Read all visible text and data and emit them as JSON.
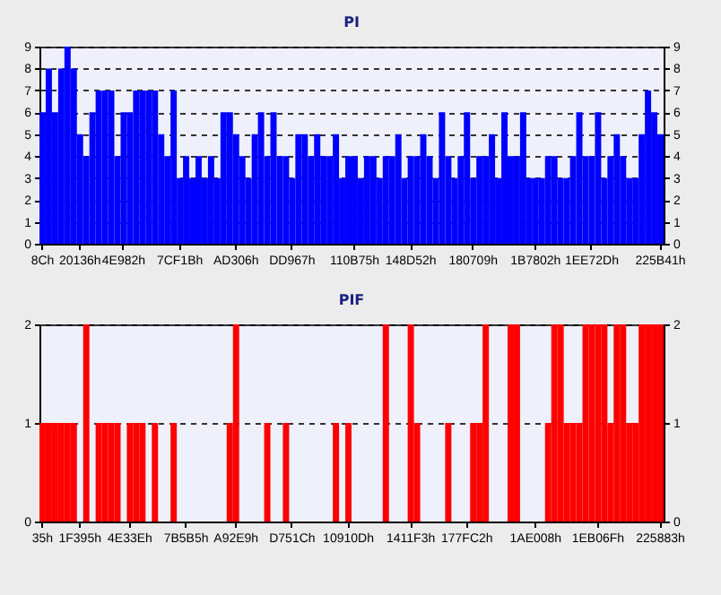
{
  "chart_data": [
    {
      "type": "bar",
      "title": "PI",
      "categories": [
        "8Ch",
        null,
        null,
        null,
        null,
        null,
        "20136h",
        null,
        null,
        null,
        null,
        null,
        null,
        "4E982h",
        null,
        null,
        null,
        null,
        null,
        null,
        null,
        null,
        "7CF1Bh",
        null,
        null,
        null,
        null,
        null,
        null,
        null,
        null,
        "AD306h",
        null,
        null,
        null,
        null,
        null,
        null,
        null,
        null,
        "DD967h",
        null,
        null,
        null,
        null,
        null,
        null,
        null,
        null,
        null,
        "110B75h",
        null,
        null,
        null,
        null,
        null,
        null,
        null,
        null,
        "148D52h",
        null,
        null,
        null,
        null,
        null,
        null,
        null,
        null,
        null,
        "180709h",
        null,
        null,
        null,
        null,
        null,
        null,
        null,
        null,
        null,
        "1B7802h",
        null,
        null,
        null,
        null,
        null,
        null,
        null,
        null,
        "1EE72Dh",
        null,
        null,
        null,
        null,
        null,
        null,
        null,
        null,
        null,
        null,
        "225B41h"
      ],
      "series": [
        {
          "color": "#0000ff",
          "values": [
            6,
            8,
            6,
            8,
            9,
            8,
            5,
            4,
            6,
            7,
            7,
            7,
            4,
            6,
            6,
            7,
            7,
            7,
            7,
            5,
            4,
            7,
            3,
            4,
            3,
            4,
            3,
            4,
            3,
            6,
            6,
            5,
            4,
            3,
            5,
            6,
            4,
            6,
            4,
            4,
            3,
            5,
            5,
            4,
            5,
            4,
            4,
            5,
            3,
            4,
            4,
            3,
            4,
            4,
            3,
            4,
            4,
            5,
            3,
            4,
            4,
            5,
            4,
            3,
            6,
            4,
            3,
            4,
            6,
            3,
            4,
            4,
            5,
            3,
            6,
            4,
            4,
            6,
            3,
            3,
            3,
            4,
            4,
            3,
            3,
            4,
            6,
            4,
            4,
            6,
            3,
            4,
            5,
            4,
            3,
            3,
            5,
            7,
            6,
            5
          ]
        }
      ],
      "ylim": [
        0,
        9
      ],
      "yticks": [
        0,
        1,
        2,
        3,
        4,
        5,
        6,
        7,
        8,
        9
      ],
      "y2lim": [
        0,
        9
      ],
      "y2ticks": [
        0,
        1,
        2,
        3,
        4,
        5,
        6,
        7,
        8,
        9
      ],
      "grid": "y"
    },
    {
      "type": "bar",
      "title": "PIF",
      "categories": [
        "35h",
        null,
        null,
        null,
        null,
        null,
        "1F395h",
        null,
        null,
        null,
        null,
        null,
        null,
        null,
        "4E33Eh",
        null,
        null,
        null,
        null,
        null,
        null,
        null,
        null,
        "7B5B5h",
        null,
        null,
        null,
        null,
        null,
        null,
        null,
        "A92E9h",
        null,
        null,
        null,
        null,
        null,
        null,
        null,
        null,
        "D751Ch",
        null,
        null,
        null,
        null,
        null,
        null,
        null,
        null,
        "10910Dh",
        null,
        null,
        null,
        null,
        null,
        null,
        null,
        null,
        null,
        "1411F3h",
        null,
        null,
        null,
        null,
        null,
        null,
        null,
        null,
        "177FC2h",
        null,
        null,
        null,
        null,
        null,
        null,
        null,
        null,
        null,
        null,
        "1AE008h",
        null,
        null,
        null,
        null,
        null,
        null,
        null,
        null,
        null,
        "1EB06Fh",
        null,
        null,
        null,
        null,
        null,
        null,
        null,
        null,
        null,
        "225883h"
      ],
      "series": [
        {
          "color": "#ff0000",
          "values": [
            1,
            1,
            1,
            1,
            1,
            1,
            0,
            2,
            0,
            1,
            1,
            1,
            1,
            0,
            1,
            1,
            1,
            0,
            1,
            0,
            0,
            1,
            0,
            0,
            0,
            0,
            0,
            0,
            0,
            0,
            1,
            2,
            0,
            0,
            0,
            0,
            1,
            0,
            0,
            1,
            0,
            0,
            0,
            0,
            0,
            0,
            0,
            1,
            0,
            1,
            0,
            0,
            0,
            0,
            0,
            2,
            0,
            0,
            0,
            2,
            1,
            0,
            0,
            0,
            0,
            1,
            0,
            0,
            0,
            1,
            1,
            2,
            0,
            0,
            0,
            2,
            2,
            0,
            0,
            0,
            0,
            1,
            2,
            2,
            1,
            1,
            1,
            2,
            2,
            2,
            2,
            1,
            2,
            2,
            1,
            1,
            2,
            2,
            2,
            2
          ]
        }
      ],
      "ylim": [
        0,
        2
      ],
      "yticks": [
        0,
        1,
        2
      ],
      "y2lim": [
        0,
        2
      ],
      "y2ticks": [
        0,
        1,
        2
      ],
      "grid": "y"
    }
  ]
}
